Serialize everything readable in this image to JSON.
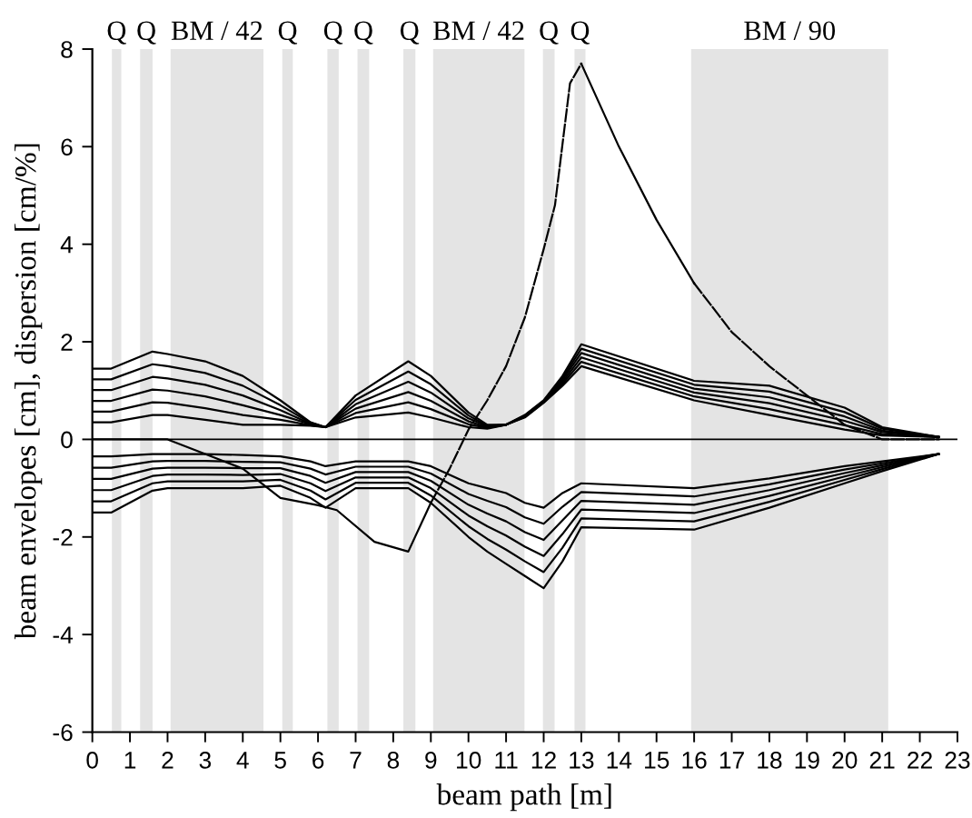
{
  "chart_data": {
    "type": "line",
    "xlabel": "beam path [m]",
    "ylabel": "beam envelopes [cm], dispersion [cm/%]",
    "x": [
      0,
      0.5,
      1.6,
      2,
      3,
      4,
      5,
      5.8,
      6.2,
      7,
      8.4,
      9,
      10,
      10.5,
      11,
      11.5,
      12,
      12.5,
      13,
      16,
      18,
      20,
      21,
      22.5
    ],
    "xlim": [
      0,
      23
    ],
    "ylim": [
      -6,
      8
    ],
    "xticks": [
      0,
      1,
      2,
      3,
      4,
      5,
      6,
      7,
      8,
      9,
      10,
      11,
      12,
      13,
      14,
      15,
      16,
      17,
      18,
      19,
      20,
      21,
      22,
      23
    ],
    "yticks": [
      -6,
      -4,
      -2,
      0,
      2,
      4,
      6,
      8
    ],
    "grid": false,
    "legend": false,
    "marker": "none",
    "ref_lines": [
      {
        "axis": "y",
        "value": 0,
        "color": "#000000"
      }
    ],
    "series": [
      {
        "color": "#000000",
        "line_style": "solid",
        "values": [
          1.45,
          1.45,
          1.8,
          1.75,
          1.6,
          1.3,
          0.8,
          0.35,
          0.25,
          0.9,
          1.6,
          1.3,
          0.55,
          0.3,
          0.3,
          0.5,
          0.8,
          1.3,
          1.95,
          1.2,
          1.1,
          0.65,
          0.25,
          0.05
        ]
      },
      {
        "color": "#000000",
        "line_style": "solid",
        "values": [
          1.23,
          1.23,
          1.54,
          1.5,
          1.36,
          1.1,
          0.7,
          0.34,
          0.25,
          0.81,
          1.39,
          1.13,
          0.49,
          0.28,
          0.3,
          0.49,
          0.79,
          1.26,
          1.86,
          1.12,
          0.98,
          0.56,
          0.22,
          0.05
        ]
      },
      {
        "color": "#000000",
        "line_style": "solid",
        "values": [
          1.01,
          1.01,
          1.28,
          1.25,
          1.12,
          0.9,
          0.6,
          0.32,
          0.25,
          0.72,
          1.18,
          0.96,
          0.43,
          0.27,
          0.3,
          0.48,
          0.78,
          1.22,
          1.77,
          1.04,
          0.86,
          0.47,
          0.18,
          0.05
        ]
      },
      {
        "color": "#000000",
        "line_style": "solid",
        "values": [
          0.79,
          0.79,
          1.02,
          1.0,
          0.88,
          0.7,
          0.5,
          0.31,
          0.25,
          0.63,
          0.97,
          0.79,
          0.37,
          0.25,
          0.3,
          0.47,
          0.77,
          1.18,
          1.68,
          0.96,
          0.74,
          0.38,
          0.15,
          0.05
        ]
      },
      {
        "color": "#000000",
        "line_style": "solid",
        "values": [
          0.57,
          0.57,
          0.76,
          0.75,
          0.64,
          0.5,
          0.4,
          0.29,
          0.25,
          0.54,
          0.76,
          0.62,
          0.31,
          0.24,
          0.3,
          0.46,
          0.76,
          1.14,
          1.59,
          0.88,
          0.62,
          0.29,
          0.11,
          0.05
        ]
      },
      {
        "color": "#000000",
        "line_style": "solid",
        "values": [
          0.35,
          0.35,
          0.5,
          0.5,
          0.4,
          0.3,
          0.3,
          0.28,
          0.25,
          0.45,
          0.55,
          0.45,
          0.25,
          0.22,
          0.3,
          0.45,
          0.75,
          1.1,
          1.5,
          0.8,
          0.5,
          0.2,
          0.08,
          0.05
        ]
      },
      {
        "color": "#000000",
        "line_style": "solid",
        "values": [
          -1.5,
          -1.5,
          -1.05,
          -1.0,
          -1.0,
          -1.0,
          -0.95,
          -1.2,
          -1.4,
          -1.0,
          -1.0,
          -1.3,
          -2.0,
          -2.3,
          -2.55,
          -2.8,
          -3.05,
          -2.5,
          -1.8,
          -1.85,
          -1.4,
          -0.9,
          -0.65,
          -0.3
        ]
      },
      {
        "color": "#000000",
        "line_style": "solid",
        "values": [
          -1.27,
          -1.27,
          -0.9,
          -0.86,
          -0.86,
          -0.86,
          -0.83,
          -1.05,
          -1.23,
          -0.89,
          -0.89,
          -1.15,
          -1.78,
          -2.04,
          -2.26,
          -2.5,
          -2.72,
          -2.22,
          -1.62,
          -1.68,
          -1.28,
          -0.83,
          -0.61,
          -0.3
        ]
      },
      {
        "color": "#000000",
        "line_style": "solid",
        "values": [
          -1.04,
          -1.04,
          -0.75,
          -0.72,
          -0.72,
          -0.73,
          -0.71,
          -0.9,
          -1.06,
          -0.78,
          -0.78,
          -1.0,
          -1.56,
          -1.78,
          -1.97,
          -2.2,
          -2.39,
          -1.94,
          -1.44,
          -1.51,
          -1.16,
          -0.76,
          -0.57,
          -0.3
        ]
      },
      {
        "color": "#000000",
        "line_style": "solid",
        "values": [
          -0.81,
          -0.81,
          -0.6,
          -0.58,
          -0.58,
          -0.59,
          -0.59,
          -0.75,
          -0.89,
          -0.67,
          -0.67,
          -0.85,
          -1.34,
          -1.52,
          -1.68,
          -1.9,
          -2.06,
          -1.66,
          -1.26,
          -1.34,
          -1.04,
          -0.69,
          -0.53,
          -0.3
        ]
      },
      {
        "color": "#000000",
        "line_style": "solid",
        "values": [
          -0.58,
          -0.58,
          -0.45,
          -0.44,
          -0.44,
          -0.46,
          -0.47,
          -0.6,
          -0.72,
          -0.56,
          -0.56,
          -0.7,
          -1.12,
          -1.26,
          -1.39,
          -1.6,
          -1.73,
          -1.38,
          -1.08,
          -1.17,
          -0.92,
          -0.62,
          -0.49,
          -0.3
        ]
      },
      {
        "color": "#000000",
        "line_style": "solid",
        "values": [
          -0.35,
          -0.35,
          -0.3,
          -0.3,
          -0.3,
          -0.32,
          -0.35,
          -0.45,
          -0.55,
          -0.45,
          -0.45,
          -0.55,
          -0.9,
          -1.0,
          -1.1,
          -1.3,
          -1.4,
          -1.1,
          -0.9,
          -1.0,
          -0.8,
          -0.55,
          -0.45,
          -0.3
        ]
      },
      {
        "color": "#000000",
        "line_style": "solid",
        "x": [
          0,
          2,
          3,
          4,
          5,
          6,
          6.5,
          7.5,
          8.4,
          9
        ],
        "values": [
          0,
          0,
          -0.3,
          -0.6,
          -1.2,
          -1.35,
          -1.45,
          -2.1,
          -2.3,
          -1.3
        ]
      },
      {
        "color": "#000000",
        "line_style": "dashed",
        "x": [
          9,
          9.5,
          10,
          10.5,
          11,
          11.5,
          12,
          12.3,
          12.7,
          13
        ],
        "values": [
          -1.3,
          -0.6,
          0.2,
          0.8,
          1.5,
          2.5,
          3.9,
          4.8,
          7.3,
          7.7
        ]
      },
      {
        "color": "#000000",
        "line_style": "solid",
        "x": [
          13,
          14,
          15,
          16
        ],
        "values": [
          7.7,
          6,
          4.5,
          3.2
        ]
      },
      {
        "color": "#000000",
        "line_style": "dashed",
        "x": [
          16,
          17,
          18,
          19,
          20,
          21,
          22.5
        ],
        "values": [
          3.2,
          2.2,
          1.5,
          0.9,
          0.3,
          0,
          0
        ]
      }
    ],
    "bands": [
      {
        "axis": "x",
        "from": 0.52,
        "to": 0.77,
        "label": "Q",
        "color": "#e4e4e4"
      },
      {
        "axis": "x",
        "from": 1.27,
        "to": 1.6,
        "label": "Q",
        "color": "#e4e4e4"
      },
      {
        "axis": "x",
        "from": 2.08,
        "to": 4.55,
        "label": "BM / 42",
        "color": "#e4e4e4"
      },
      {
        "axis": "x",
        "from": 5.05,
        "to": 5.33,
        "label": "Q",
        "color": "#e4e4e4"
      },
      {
        "axis": "x",
        "from": 6.25,
        "to": 6.55,
        "label": "Q",
        "color": "#e4e4e4"
      },
      {
        "axis": "x",
        "from": 7.05,
        "to": 7.36,
        "label": "Q",
        "color": "#e4e4e4"
      },
      {
        "axis": "x",
        "from": 8.27,
        "to": 8.59,
        "label": "Q",
        "color": "#e4e4e4"
      },
      {
        "axis": "x",
        "from": 9.06,
        "to": 11.49,
        "label": "BM / 42",
        "color": "#e4e4e4"
      },
      {
        "axis": "x",
        "from": 11.98,
        "to": 12.29,
        "label": "Q",
        "color": "#e4e4e4"
      },
      {
        "axis": "x",
        "from": 12.82,
        "to": 13.11,
        "label": "Q",
        "color": "#e4e4e4"
      },
      {
        "axis": "x",
        "from": 15.92,
        "to": 21.16,
        "label": "BM / 90",
        "color": "#e4e4e4"
      }
    ]
  }
}
